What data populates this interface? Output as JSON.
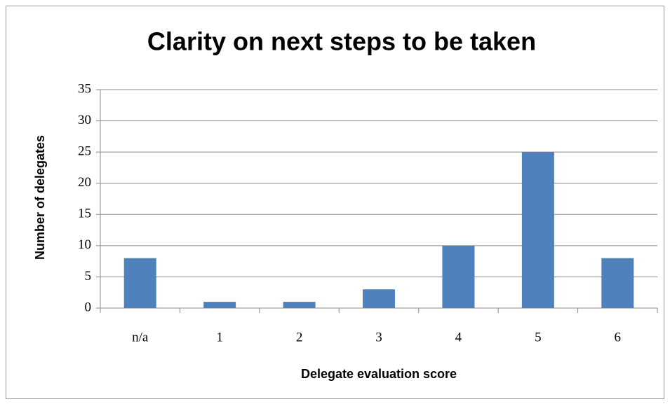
{
  "chart_data": {
    "type": "bar",
    "title": "Clarity on next steps to be taken",
    "xlabel": "Delegate evaluation score",
    "ylabel": "Number of delegates",
    "categories": [
      "n/a",
      "1",
      "2",
      "3",
      "4",
      "5",
      "6"
    ],
    "values": [
      8,
      1,
      1,
      3,
      10,
      25,
      8
    ],
    "color": "#4f81bd",
    "ylim": [
      0,
      35
    ],
    "yticks": [
      0,
      5,
      10,
      15,
      20,
      25,
      30,
      35
    ],
    "grid": true
  }
}
